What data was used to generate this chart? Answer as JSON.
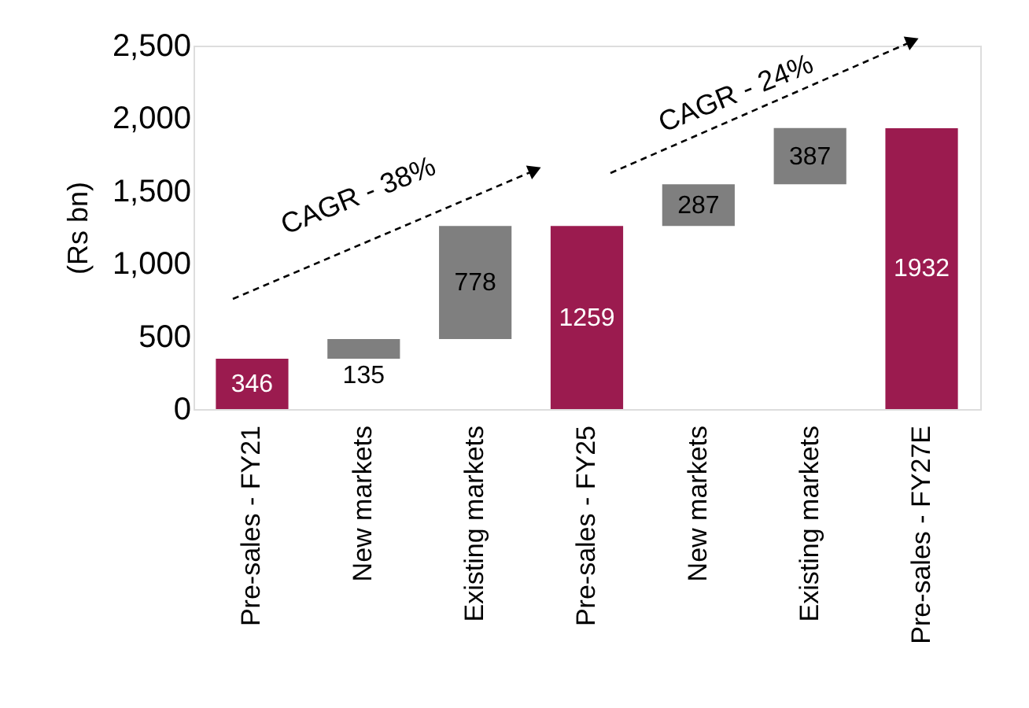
{
  "chart_data": {
    "type": "bar",
    "categories": [
      "Pre-sales - FY21",
      "New markets",
      "Existing markets",
      "Pre-sales - FY25",
      "New markets",
      "Existing markets",
      "Pre-sales - FY27E"
    ],
    "values": [
      346,
      135,
      778,
      1259,
      287,
      387,
      1932
    ],
    "base": [
      0,
      346,
      481,
      0,
      1259,
      1546,
      0
    ],
    "colors": [
      "#9b1b4f",
      "#7f7f7f",
      "#7f7f7f",
      "#9b1b4f",
      "#7f7f7f",
      "#7f7f7f",
      "#9b1b4f"
    ],
    "ylabel": "(Rs bn)",
    "ylim": [
      0,
      2500
    ],
    "yticks": [
      0,
      {
        "value": 500,
        "label": "500"
      },
      {
        "value": 1000,
        "label": "1,000"
      },
      {
        "value": 1500,
        "label": "1,500"
      },
      {
        "value": 2000,
        "label": "2,000"
      },
      {
        "value": 2500,
        "label": "2,500"
      }
    ],
    "annotations": [
      "CAGR - 38%",
      "CAGR - 24%"
    ],
    "data_labels": true,
    "grid": false
  }
}
